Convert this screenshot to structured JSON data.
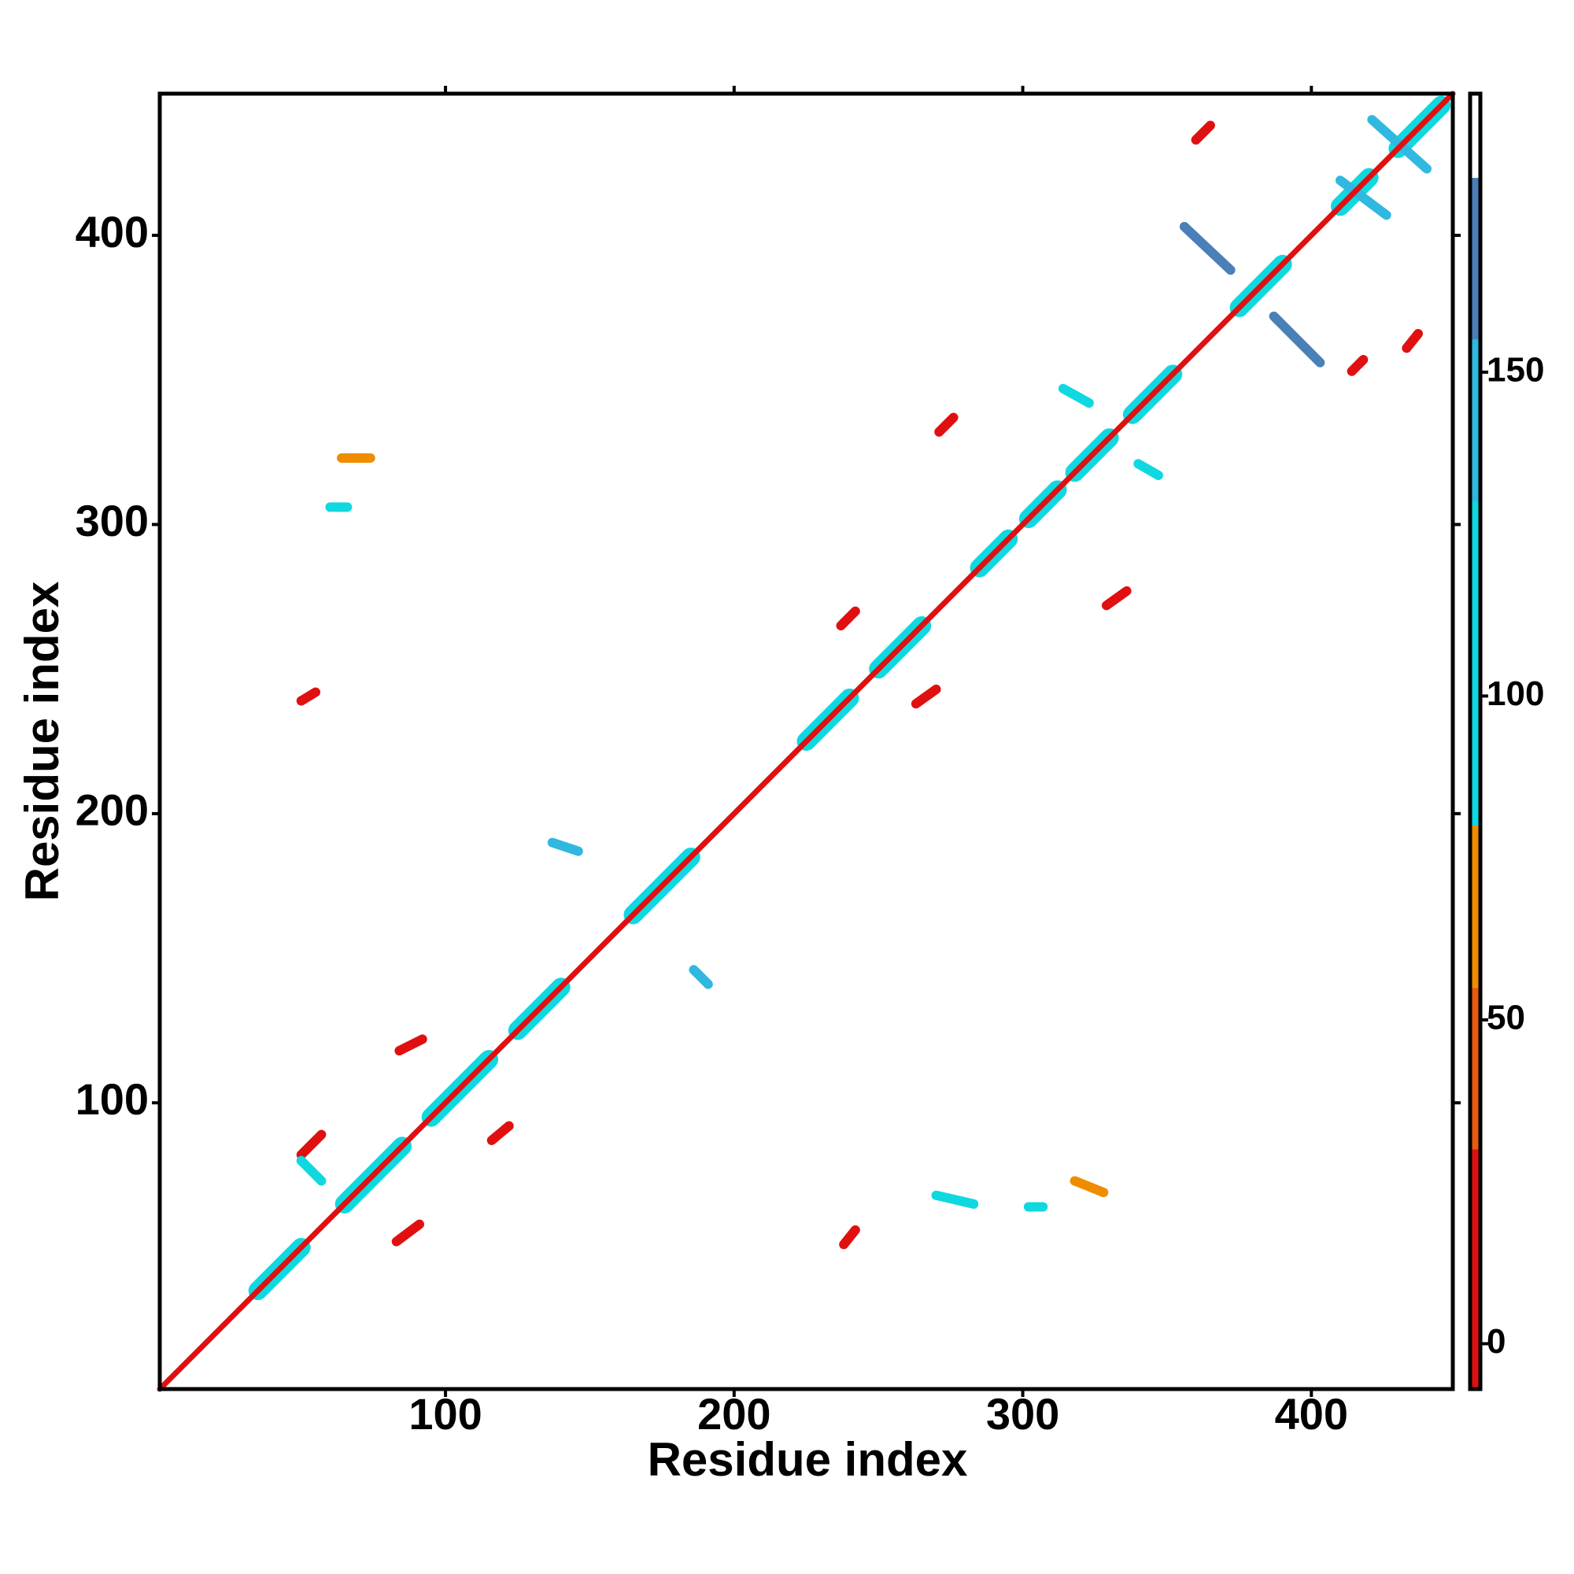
{
  "chart_data": {
    "type": "heatmap",
    "xlabel": "Residue index",
    "ylabel": "Residue index",
    "xlim": [
      1,
      449
    ],
    "ylim": [
      1,
      449
    ],
    "xticks": [
      100,
      200,
      300,
      400
    ],
    "yticks": [
      100,
      200,
      300,
      400
    ],
    "diagonal": {
      "x": [
        1,
        449
      ],
      "y": [
        1,
        449
      ],
      "value": 10
    },
    "helices": [
      {
        "x": [
          35,
          50
        ],
        "y": [
          35,
          50
        ],
        "value": 95
      },
      {
        "x": [
          65,
          85
        ],
        "y": [
          65,
          85
        ],
        "value": 95
      },
      {
        "x": [
          95,
          115
        ],
        "y": [
          95,
          115
        ],
        "value": 95
      },
      {
        "x": [
          125,
          140
        ],
        "y": [
          125,
          140
        ],
        "value": 95
      },
      {
        "x": [
          165,
          185
        ],
        "y": [
          165,
          185
        ],
        "value": 95
      },
      {
        "x": [
          225,
          240
        ],
        "y": [
          225,
          240
        ],
        "value": 95
      },
      {
        "x": [
          250,
          265
        ],
        "y": [
          250,
          265
        ],
        "value": 95
      },
      {
        "x": [
          285,
          295
        ],
        "y": [
          285,
          295
        ],
        "value": 95
      },
      {
        "x": [
          302,
          312
        ],
        "y": [
          302,
          312
        ],
        "value": 95
      },
      {
        "x": [
          318,
          330
        ],
        "y": [
          318,
          330
        ],
        "value": 95
      },
      {
        "x": [
          338,
          352
        ],
        "y": [
          338,
          352
        ],
        "value": 95
      },
      {
        "x": [
          375,
          390
        ],
        "y": [
          375,
          390
        ],
        "value": 95
      },
      {
        "x": [
          410,
          420
        ],
        "y": [
          410,
          420
        ],
        "value": 95
      },
      {
        "x": [
          430,
          445
        ],
        "y": [
          430,
          445
        ],
        "value": 95
      }
    ],
    "contacts": [
      {
        "x": [
          50,
          57
        ],
        "y": [
          82,
          89
        ],
        "value": 10
      },
      {
        "x": [
          83,
          91
        ],
        "y": [
          52,
          58
        ],
        "value": 10
      },
      {
        "x": [
          84,
          92
        ],
        "y": [
          118,
          122
        ],
        "value": 10
      },
      {
        "x": [
          116,
          122
        ],
        "y": [
          87,
          92
        ],
        "value": 10
      },
      {
        "x": [
          50,
          55
        ],
        "y": [
          239,
          242
        ],
        "value": 10
      },
      {
        "x": [
          238,
          242
        ],
        "y": [
          51,
          56
        ],
        "value": 10
      },
      {
        "x": [
          237,
          242
        ],
        "y": [
          265,
          270
        ],
        "value": 10
      },
      {
        "x": [
          263,
          270
        ],
        "y": [
          238,
          243
        ],
        "value": 10
      },
      {
        "x": [
          271,
          276
        ],
        "y": [
          332,
          337
        ],
        "value": 10
      },
      {
        "x": [
          329,
          336
        ],
        "y": [
          272,
          277
        ],
        "value": 10
      },
      {
        "x": [
          360,
          365
        ],
        "y": [
          433,
          438
        ],
        "value": 10
      },
      {
        "x": [
          414,
          418
        ],
        "y": [
          353,
          357
        ],
        "value": 10
      },
      {
        "x": [
          433,
          437
        ],
        "y": [
          361,
          366
        ],
        "value": 10
      },
      {
        "x": [
          356,
          372
        ],
        "y": [
          403,
          388
        ],
        "value": 160
      },
      {
        "x": [
          387,
          403
        ],
        "y": [
          372,
          356
        ],
        "value": 160
      },
      {
        "x": [
          410,
          426
        ],
        "y": [
          419,
          407
        ],
        "value": 150
      },
      {
        "x": [
          421,
          440
        ],
        "y": [
          440,
          423
        ],
        "value": 150
      },
      {
        "x": [
          137,
          146
        ],
        "y": [
          190,
          187
        ],
        "value": 140
      },
      {
        "x": [
          186,
          191
        ],
        "y": [
          146,
          141
        ],
        "value": 140
      },
      {
        "x": [
          60,
          66
        ],
        "y": [
          306,
          306
        ],
        "value": 100
      },
      {
        "x": [
          50,
          57
        ],
        "y": [
          80,
          73
        ],
        "value": 100
      },
      {
        "x": [
          302,
          307
        ],
        "y": [
          64,
          64
        ],
        "value": 100
      },
      {
        "x": [
          270,
          283
        ],
        "y": [
          68,
          65
        ],
        "value": 110
      },
      {
        "x": [
          340,
          347
        ],
        "y": [
          321,
          317
        ],
        "value": 120
      },
      {
        "x": [
          314,
          323
        ],
        "y": [
          347,
          342
        ],
        "value": 110
      },
      {
        "x": [
          318,
          328
        ],
        "y": [
          73,
          69
        ],
        "value": 60
      },
      {
        "x": [
          64,
          74
        ],
        "y": [
          323,
          323
        ],
        "value": 60
      }
    ],
    "colorbar": {
      "lim": [
        -7,
        193
      ],
      "ticks": [
        0,
        50,
        100,
        150
      ],
      "bounds": [
        -7,
        30,
        55,
        80,
        130,
        155,
        180,
        193
      ],
      "colors": [
        "#e01010",
        "#e85a10",
        "#f08c00",
        "#10d8e0",
        "#30b8e0",
        "#4a7fb8",
        "#ffffff"
      ]
    }
  }
}
